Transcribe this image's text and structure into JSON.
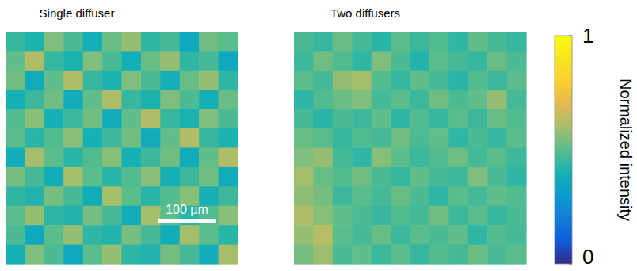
{
  "chart_data": [
    {
      "type": "heatmap",
      "title": "Single diffuser",
      "width": 407,
      "scale_bar": {
        "length": 100,
        "label": "100 µm"
      },
      "cells": [
        [
          0.45,
          0.41,
          0.55,
          0.48,
          0.39,
          0.52,
          0.58,
          0.44,
          0.47,
          0.36,
          0.53,
          0.5
        ],
        [
          0.51,
          0.62,
          0.45,
          0.41,
          0.55,
          0.48,
          0.39,
          0.52,
          0.58,
          0.44,
          0.47,
          0.36
        ],
        [
          0.53,
          0.37,
          0.51,
          0.62,
          0.45,
          0.41,
          0.55,
          0.48,
          0.39,
          0.52,
          0.58,
          0.44
        ],
        [
          0.4,
          0.46,
          0.53,
          0.37,
          0.51,
          0.62,
          0.45,
          0.41,
          0.55,
          0.48,
          0.39,
          0.52
        ],
        [
          0.49,
          0.56,
          0.4,
          0.46,
          0.53,
          0.37,
          0.51,
          0.62,
          0.45,
          0.41,
          0.55,
          0.48
        ],
        [
          0.5,
          0.43,
          0.49,
          0.56,
          0.4,
          0.46,
          0.53,
          0.37,
          0.51,
          0.62,
          0.45,
          0.41
        ],
        [
          0.38,
          0.6,
          0.5,
          0.43,
          0.49,
          0.56,
          0.4,
          0.46,
          0.53,
          0.37,
          0.51,
          0.62
        ],
        [
          0.54,
          0.47,
          0.38,
          0.6,
          0.5,
          0.43,
          0.49,
          0.56,
          0.4,
          0.46,
          0.53,
          0.37
        ],
        [
          0.44,
          0.42,
          0.54,
          0.47,
          0.38,
          0.6,
          0.5,
          0.43,
          0.49,
          0.56,
          0.4,
          0.46
        ],
        [
          0.5,
          0.58,
          0.44,
          0.42,
          0.54,
          0.47,
          0.38,
          0.6,
          0.5,
          0.43,
          0.49,
          0.56
        ],
        [
          0.48,
          0.36,
          0.5,
          0.58,
          0.44,
          0.42,
          0.54,
          0.47,
          0.38,
          0.6,
          0.5,
          0.43
        ],
        [
          0.4,
          0.55,
          0.48,
          0.36,
          0.5,
          0.58,
          0.44,
          0.42,
          0.54,
          0.47,
          0.38,
          0.6
        ]
      ]
    },
    {
      "type": "heatmap",
      "title": "Two diffusers",
      "width": 407,
      "cells": [
        [
          0.48,
          0.45,
          0.52,
          0.47,
          0.43,
          0.5,
          0.46,
          0.49,
          0.44,
          0.51,
          0.47,
          0.45
        ],
        [
          0.46,
          0.53,
          0.49,
          0.44,
          0.55,
          0.48,
          0.42,
          0.5,
          0.47,
          0.45,
          0.52,
          0.48
        ],
        [
          0.5,
          0.47,
          0.58,
          0.6,
          0.49,
          0.45,
          0.51,
          0.47,
          0.43,
          0.49,
          0.46,
          0.5
        ],
        [
          0.44,
          0.49,
          0.52,
          0.55,
          0.47,
          0.5,
          0.46,
          0.53,
          0.48,
          0.51,
          0.58,
          0.47
        ],
        [
          0.47,
          0.43,
          0.48,
          0.46,
          0.51,
          0.44,
          0.49,
          0.45,
          0.5,
          0.46,
          0.52,
          0.49
        ],
        [
          0.52,
          0.5,
          0.45,
          0.49,
          0.47,
          0.53,
          0.48,
          0.51,
          0.44,
          0.48,
          0.45,
          0.5
        ],
        [
          0.55,
          0.58,
          0.47,
          0.44,
          0.56,
          0.5,
          0.46,
          0.49,
          0.53,
          0.47,
          0.5,
          0.46
        ],
        [
          0.6,
          0.52,
          0.49,
          0.53,
          0.48,
          0.45,
          0.51,
          0.47,
          0.46,
          0.55,
          0.48,
          0.44
        ],
        [
          0.57,
          0.54,
          0.46,
          0.5,
          0.47,
          0.52,
          0.48,
          0.44,
          0.5,
          0.47,
          0.51,
          0.49
        ],
        [
          0.62,
          0.56,
          0.51,
          0.48,
          0.45,
          0.49,
          0.47,
          0.53,
          0.46,
          0.5,
          0.45,
          0.48
        ],
        [
          0.58,
          0.63,
          0.5,
          0.47,
          0.52,
          0.46,
          0.5,
          0.48,
          0.51,
          0.44,
          0.49,
          0.47
        ],
        [
          0.54,
          0.59,
          0.48,
          0.51,
          0.46,
          0.5,
          0.45,
          0.49,
          0.47,
          0.52,
          0.48,
          0.5
        ]
      ],
      "colorbar": {
        "range": [
          0,
          1
        ],
        "ticks": [
          0,
          1
        ],
        "label": "Normalized intensity"
      }
    }
  ]
}
